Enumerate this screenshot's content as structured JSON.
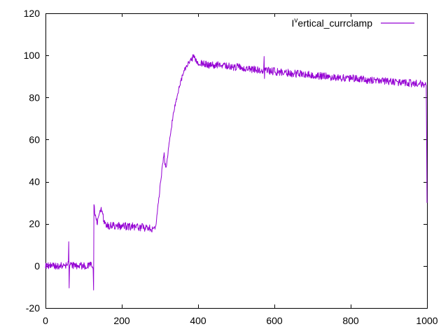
{
  "window": {
    "background": "#ffffff",
    "border_color": "#000000",
    "tick_color": "#000000",
    "label_color": "#000000"
  },
  "legend": {
    "prefix": "I",
    "superscript": "v",
    "rest": "ertical_currclamp",
    "full_name": "I^vertical_currclamp"
  },
  "chart_data": {
    "type": "line",
    "title": "",
    "xlabel": "",
    "ylabel": "",
    "xlim": [
      0,
      1000
    ],
    "ylim": [
      -20,
      120
    ],
    "xticks": [
      0,
      200,
      400,
      600,
      800,
      1000
    ],
    "yticks": [
      -20,
      0,
      20,
      40,
      60,
      80,
      100,
      120
    ],
    "grid": false,
    "legend_position": "top-right-inside",
    "series": [
      {
        "name": "I^vertical_currclamp",
        "color": "#9400D3",
        "style": "noisy-line",
        "backbone": [
          [
            0,
            0
          ],
          [
            57,
            0
          ],
          [
            60,
            0.5
          ],
          [
            63,
            0
          ],
          [
            120,
            0.2
          ],
          [
            125,
            -1.5
          ],
          [
            126.3,
            -11.5
          ],
          [
            126.9,
            29.5
          ],
          [
            129,
            25
          ],
          [
            133,
            21.5
          ],
          [
            137,
            21
          ],
          [
            141,
            23.5
          ],
          [
            145,
            27
          ],
          [
            148,
            26.5
          ],
          [
            153,
            21.5
          ],
          [
            160,
            19.2
          ],
          [
            200,
            18.8
          ],
          [
            240,
            18.6
          ],
          [
            285,
            17.6
          ],
          [
            290,
            20
          ],
          [
            296,
            30
          ],
          [
            303,
            42
          ],
          [
            308,
            50
          ],
          [
            311,
            54
          ],
          [
            313,
            48
          ],
          [
            316,
            47
          ],
          [
            320,
            52
          ],
          [
            327,
            62
          ],
          [
            335,
            72
          ],
          [
            343,
            79
          ],
          [
            352,
            86
          ],
          [
            362,
            92
          ],
          [
            371,
            95.5
          ],
          [
            380,
            97.5
          ],
          [
            388,
            99
          ],
          [
            392,
            97.5
          ],
          [
            398,
            96.3
          ],
          [
            430,
            95.6
          ],
          [
            470,
            95
          ],
          [
            510,
            94.2
          ],
          [
            555,
            93
          ],
          [
            600,
            92.4
          ],
          [
            650,
            91.4
          ],
          [
            700,
            90.7
          ],
          [
            750,
            89.7
          ],
          [
            800,
            89.2
          ],
          [
            850,
            88.3
          ],
          [
            900,
            87.7
          ],
          [
            950,
            86.9
          ],
          [
            996,
            86.2
          ],
          [
            998,
            86
          ],
          [
            1000,
            30
          ]
        ],
        "noise": {
          "seed": 9,
          "segments": [
            [
              0,
              120,
              1.8
            ],
            [
              120,
              127,
              0.5
            ],
            [
              127,
              158,
              1.6
            ],
            [
              158,
              288,
              1.9
            ],
            [
              288,
              384,
              1.1
            ],
            [
              384,
              996,
              1.8
            ],
            [
              996,
              1000,
              0.4
            ]
          ]
        },
        "spikes": {
          "61": 11.5,
          "62": -10.5,
          "126": -11.5,
          "573": 99.5,
          "574": 89
        }
      }
    ],
    "annotations": {
      "shape_summary": "noisy trace near 0 until x~125 (spikes at x~61 up to +11.5 and down to -10.5; dip to -11.5 then jump to +29.5 at x~126), plateau ~18-19 until x~288, steep ramp to ~100 at x~390 with notch 54->47 near x~312, slow noisy decline from ~96 to ~86 by x=1000, final drop to ~30 at right edge"
    }
  }
}
